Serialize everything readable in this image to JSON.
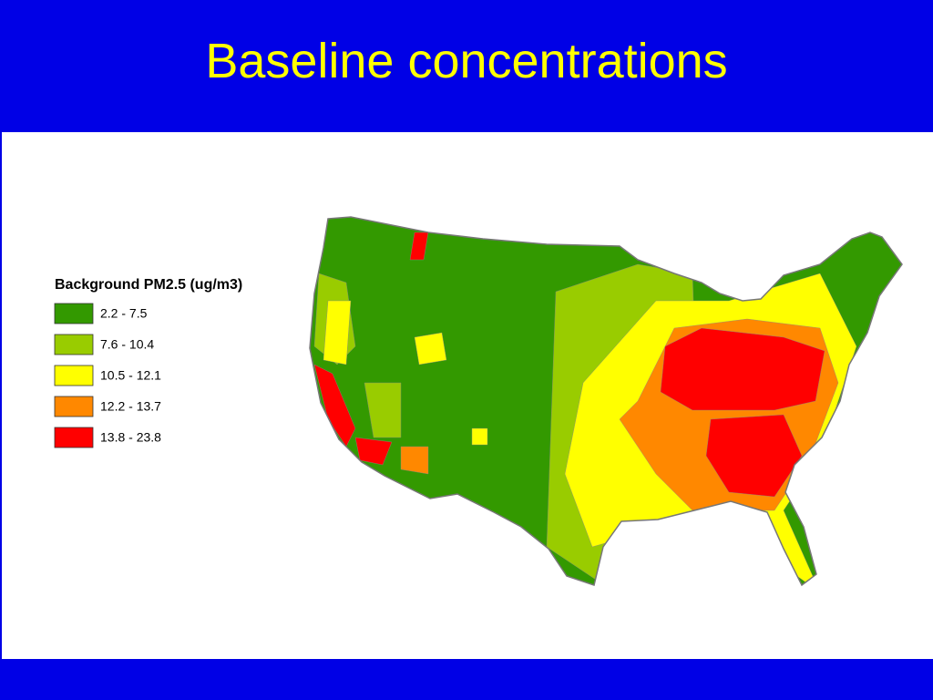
{
  "title": "Baseline concentrations",
  "legend": {
    "title": "Background PM2.5 (ug/m3)",
    "items": [
      {
        "label": "2.2 - 7.5",
        "color": "#339900"
      },
      {
        "label": "7.6 - 10.4",
        "color": "#99cc00"
      },
      {
        "label": "10.5 - 12.1",
        "color": "#ffff00"
      },
      {
        "label": "12.2 - 13.7",
        "color": "#ff8800"
      },
      {
        "label": "13.8 - 23.8",
        "color": "#ff0000"
      }
    ]
  }
}
